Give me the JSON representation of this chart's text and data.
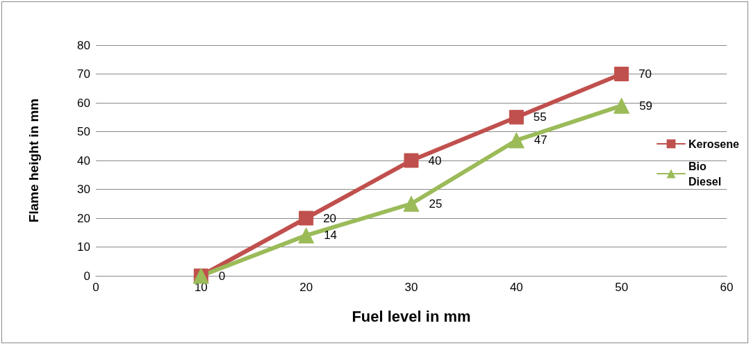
{
  "chart_data": {
    "type": "line",
    "xlabel": "Fuel level in mm",
    "ylabel": "Flame height in mm",
    "x": [
      10,
      20,
      30,
      40,
      50
    ],
    "series": [
      {
        "name": "Kerosene",
        "color": "#c0504d",
        "marker": "square",
        "values": [
          0,
          20,
          40,
          55,
          70
        ],
        "value_labels": [
          null,
          "20",
          "40",
          "55",
          "70"
        ]
      },
      {
        "name": "Bio Diesel",
        "color": "#9bbb59",
        "marker": "triangle",
        "values": [
          0,
          14,
          25,
          47,
          59
        ],
        "value_labels": [
          "0",
          "14",
          "25",
          "47",
          "59"
        ]
      }
    ],
    "xlim": [
      0,
      60
    ],
    "xticks": [
      0,
      10,
      20,
      30,
      40,
      50,
      60
    ],
    "ylim": [
      0,
      80
    ],
    "yticks": [
      0,
      10,
      20,
      30,
      40,
      50,
      60,
      70,
      80
    ],
    "grid": "y",
    "legend": "right"
  }
}
